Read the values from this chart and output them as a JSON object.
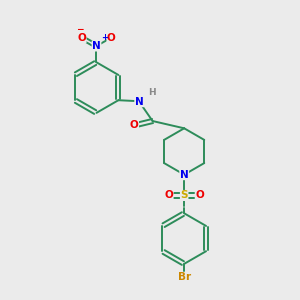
{
  "bg_color": "#ebebeb",
  "bond_color": "#2d8c5a",
  "bond_width": 1.4,
  "atom_colors": {
    "N": "#0000ee",
    "O": "#ee0000",
    "S": "#ccaa00",
    "Br": "#cc8800",
    "H": "#888888",
    "C": "#2d8c5a"
  },
  "font_size": 7.5,
  "figsize": [
    3.0,
    3.0
  ],
  "dpi": 100
}
